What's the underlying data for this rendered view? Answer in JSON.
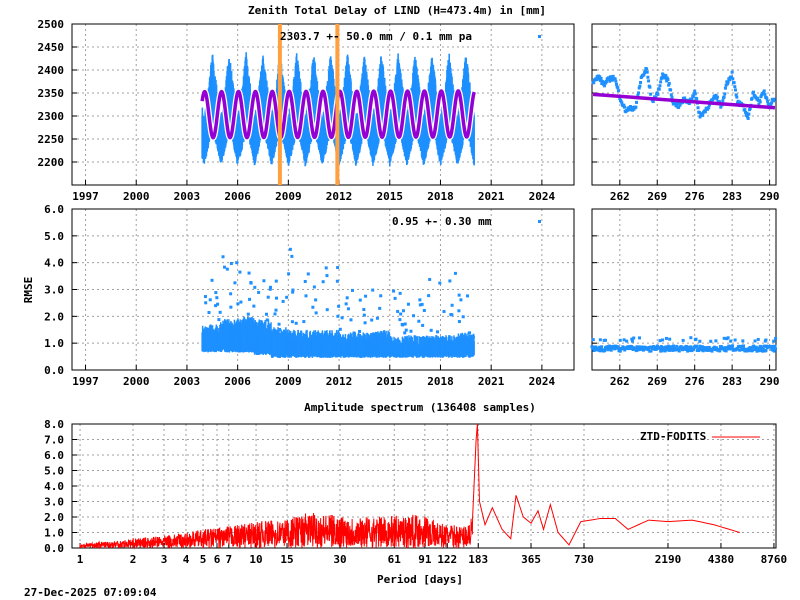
{
  "colors": {
    "ztd": "#1e90ff",
    "model": "#9400d3",
    "break": "#ffa040",
    "spectrum": "#ff0000"
  },
  "timestamp": "27-Dec-2025 07:09:04",
  "chart_data": [
    {
      "type": "scatter",
      "title": "Zenith Total Delay of LIND (H=473.4m) in [mm]",
      "annotation": "2303.7 +-  50.0 mm /  0.1 mm pa",
      "model": {
        "mean": 2303.7,
        "amplitude": 50.0,
        "trend_per_year": 0.1
      },
      "xlim": [
        1996.2,
        2025.9
      ],
      "ylim": [
        2150,
        2500
      ],
      "xticks": [
        "1997",
        "2000",
        "2003",
        "2006",
        "2009",
        "2012",
        "2015",
        "2018",
        "2021",
        "2024"
      ],
      "yticks": [
        "2500",
        "2450",
        "2400",
        "2350",
        "2300",
        "2250",
        "2200"
      ],
      "grid": true,
      "breaks": [
        2008.5,
        2011.9
      ],
      "data_start": 2003.9,
      "data_end": 2020.0,
      "seasonal_envelope": [
        [
          0.0,
          2190,
          2300
        ],
        [
          0.25,
          2225,
          2360
        ],
        [
          0.5,
          2265,
          2440
        ],
        [
          0.75,
          2235,
          2370
        ]
      ]
    },
    {
      "type": "scatter",
      "xlim": [
        256.8,
        291.2
      ],
      "ylim": [
        2150,
        2500
      ],
      "xticks": [
        "262",
        "269",
        "276",
        "283",
        "290"
      ],
      "grid": true,
      "x": [
        257,
        258,
        259,
        260,
        261,
        262,
        263,
        264,
        265,
        266,
        267,
        268,
        269,
        270,
        271,
        272,
        273,
        274,
        275,
        276,
        277,
        278,
        279,
        280,
        281,
        282,
        283,
        284,
        285,
        286,
        287,
        288,
        289,
        290,
        291
      ],
      "y": [
        2372,
        2386,
        2368,
        2380,
        2384,
        2342,
        2312,
        2316,
        2320,
        2382,
        2402,
        2332,
        2346,
        2390,
        2378,
        2330,
        2322,
        2336,
        2330,
        2352,
        2300,
        2312,
        2330,
        2342,
        2320,
        2372,
        2392,
        2330,
        2320,
        2298,
        2352,
        2330,
        2352,
        2322,
        2342
      ],
      "trend": [
        [
          257,
          2347
        ],
        [
          291,
          2318
        ]
      ]
    },
    {
      "type": "scatter",
      "ylabel": "RMSE",
      "annotation": "0.95 +-  0.30 mm",
      "xlim": [
        1996.2,
        2025.9
      ],
      "ylim": [
        0,
        6
      ],
      "xticks": [
        "1997",
        "2000",
        "2003",
        "2006",
        "2009",
        "2012",
        "2015",
        "2018",
        "2021",
        "2024"
      ],
      "yticks": [
        "6.0",
        "5.0",
        "4.0",
        "3.0",
        "2.0",
        "1.0",
        "0.0"
      ],
      "grid": true,
      "yearly": [
        [
          2003.9,
          0.8,
          1.7,
          3.6
        ],
        [
          2005,
          0.8,
          1.9,
          4.4
        ],
        [
          2006,
          0.8,
          2.0,
          3.8
        ],
        [
          2007,
          0.7,
          1.9,
          3.4
        ],
        [
          2008,
          0.6,
          1.6,
          3.6
        ],
        [
          2009,
          0.6,
          1.5,
          4.5
        ],
        [
          2010,
          0.6,
          1.5,
          3.6
        ],
        [
          2011,
          0.6,
          1.5,
          4.0
        ],
        [
          2012,
          0.6,
          1.4,
          3.5
        ],
        [
          2013,
          0.6,
          1.4,
          3.2
        ],
        [
          2014,
          0.6,
          1.5,
          3.8
        ],
        [
          2015,
          0.6,
          1.3,
          3.0
        ],
        [
          2016,
          0.6,
          1.3,
          3.0
        ],
        [
          2017,
          0.6,
          1.3,
          3.4
        ],
        [
          2018,
          0.6,
          1.3,
          4.7
        ],
        [
          2019,
          0.6,
          1.4,
          2.8
        ],
        [
          2020.0,
          0.6,
          1.2,
          1.5
        ]
      ]
    },
    {
      "type": "scatter",
      "xlim": [
        256.8,
        291.2
      ],
      "ylim": [
        0,
        6
      ],
      "xticks": [
        "262",
        "269",
        "276",
        "283",
        "290"
      ],
      "grid": true,
      "typical": 0.8,
      "upper": 1.1
    },
    {
      "type": "line",
      "title": "Amplitude spectrum (136408 samples)",
      "xlabel": "Period [days]",
      "xscale": "log",
      "xlim": [
        0.9,
        9000
      ],
      "ylim": [
        0,
        8
      ],
      "xticks": [
        "1",
        "2",
        "3",
        "4",
        "5",
        "6",
        "7",
        "10",
        "15",
        "30",
        "61",
        "91",
        "122",
        "183",
        "365",
        "730",
        "2190",
        "4380",
        "8760"
      ],
      "yticks": [
        "8.0",
        "7.0",
        "6.0",
        "5.0",
        "4.0",
        "3.0",
        "2.0",
        "1.0",
        "0.0"
      ],
      "grid": true,
      "legend_position": "top-right",
      "series": [
        {
          "name": "ZTD-FODITS",
          "points": [
            [
              1,
              0.3
            ],
            [
              1.5,
              0.45
            ],
            [
              2,
              0.6
            ],
            [
              3,
              0.8
            ],
            [
              4,
              1.0
            ],
            [
              5,
              1.2
            ],
            [
              7,
              1.4
            ],
            [
              10,
              1.7
            ],
            [
              15,
              1.9
            ],
            [
              20,
              2.3
            ],
            [
              30,
              2.1
            ],
            [
              45,
              2.0
            ],
            [
              61,
              2.1
            ],
            [
              91,
              2.2
            ],
            [
              110,
              1.6
            ],
            [
              150,
              1.4
            ],
            [
              170,
              2.0
            ],
            [
              178,
              7.0
            ],
            [
              181,
              8.0
            ],
            [
              186,
              3.0
            ],
            [
              200,
              1.5
            ],
            [
              220,
              2.6
            ],
            [
              250,
              1.2
            ],
            [
              280,
              0.6
            ],
            [
              300,
              3.4
            ],
            [
              330,
              2.0
            ],
            [
              365,
              1.6
            ],
            [
              400,
              2.4
            ],
            [
              430,
              1.2
            ],
            [
              470,
              2.8
            ],
            [
              520,
              1.0
            ],
            [
              600,
              0.2
            ],
            [
              700,
              1.7
            ],
            [
              900,
              1.9
            ],
            [
              1100,
              1.9
            ],
            [
              1300,
              1.2
            ],
            [
              1700,
              1.8
            ],
            [
              2190,
              1.7
            ],
            [
              3000,
              1.8
            ],
            [
              4000,
              1.5
            ],
            [
              6000,
              0.9
            ]
          ]
        }
      ]
    }
  ]
}
